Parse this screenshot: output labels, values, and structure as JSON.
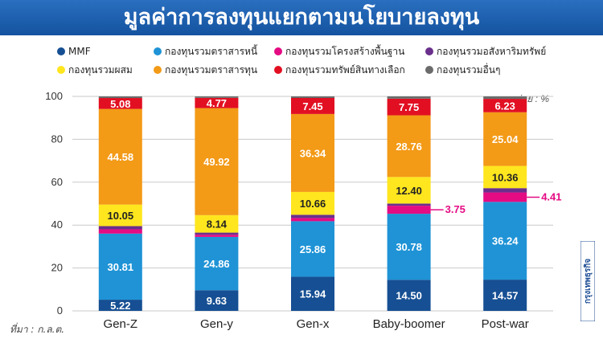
{
  "title": "มูลค่าการลงทุนแยกตามนโยบายลงทุน",
  "source": "ที่มา : ก.ล.ต.",
  "unit_label": "หน่วย : %",
  "watermark": "กรุงเทพธุรกิจ",
  "colors": {
    "MMF": "#164f93",
    "กองทุนรวมตราสารหนี้": "#1f93d6",
    "กองทุนรวมโครงสร้างพื้นฐาน": "#e40b83",
    "กองทุนรวมอสังหาริมทรัพย์": "#6a2f8c",
    "กองทุนรวมผสม": "#ffe61e",
    "กองทุนรวมตราสารทุน": "#f39a17",
    "กองทุนรวมทรัพย์สินทางเลือก": "#e20f22",
    "กองทุนรวมอื่นๆ": "#6b6b6b"
  },
  "chart_data": {
    "type": "bar",
    "stacked": true,
    "categories": [
      "Gen-Z",
      "Gen-y",
      "Gen-x",
      "Baby-boomer",
      "Post-war"
    ],
    "ylim": [
      0,
      100
    ],
    "yticks": [
      0,
      20,
      40,
      60,
      80,
      100
    ],
    "grid": true,
    "legend_position": "top",
    "series": [
      {
        "name": "MMF",
        "values": [
          5.22,
          9.63,
          15.94,
          14.5,
          14.57
        ],
        "labels": [
          "5.22",
          "9.63",
          "15.94",
          "14.50",
          "14.57"
        ]
      },
      {
        "name": "กองทุนรวมตราสารหนี้",
        "values": [
          30.81,
          24.86,
          25.86,
          30.78,
          36.24
        ],
        "labels": [
          "30.81",
          "24.86",
          "25.86",
          "30.78",
          "36.24"
        ]
      },
      {
        "name": "กองทุนรวมโครงสร้างพื้นฐาน",
        "values": [
          2.0,
          1.0,
          1.5,
          3.75,
          4.41
        ],
        "labels": [
          "",
          "",
          "",
          "3.75",
          "4.41"
        ]
      },
      {
        "name": "กองทุนรวมอสังหาริมทรัพย์",
        "values": [
          1.5,
          1.0,
          1.5,
          1.0,
          2.0
        ],
        "labels": [
          "",
          "",
          "",
          "",
          ""
        ]
      },
      {
        "name": "กองทุนรวมผสม",
        "values": [
          10.05,
          8.14,
          10.66,
          12.4,
          10.36
        ],
        "labels": [
          "10.05",
          "8.14",
          "10.66",
          "12.40",
          "10.36"
        ]
      },
      {
        "name": "กองทุนรวมตราสารทุน",
        "values": [
          44.58,
          49.92,
          36.34,
          28.76,
          25.04
        ],
        "labels": [
          "44.58",
          "49.92",
          "36.34",
          "28.76",
          "25.04"
        ]
      },
      {
        "name": "กองทุนรวมทรัพย์สินทางเลือก",
        "values": [
          5.08,
          4.77,
          7.45,
          7.75,
          6.23
        ],
        "labels": [
          "5.08",
          "4.77",
          "7.45",
          "7.75",
          "6.23"
        ]
      },
      {
        "name": "กองทุนรวมอื่นๆ",
        "values": [
          0.76,
          0.68,
          0.75,
          1.06,
          1.15
        ],
        "labels": [
          "",
          "",
          "",
          "",
          ""
        ]
      }
    ]
  }
}
